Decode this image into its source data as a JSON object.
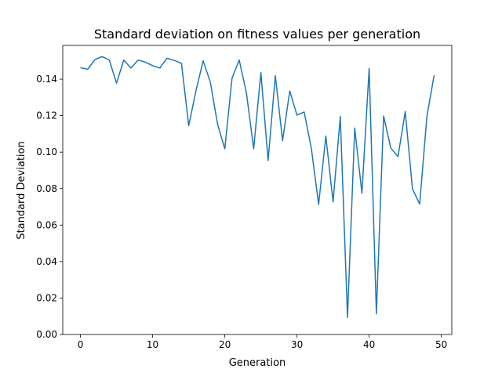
{
  "chart_data": {
    "type": "line",
    "title": "Standard deviation on fitness values per generation",
    "xlabel": "Generation",
    "ylabel": "Standard Deviation",
    "xlim": [
      -2.45,
      51.45
    ],
    "ylim": [
      0.0,
      0.1585
    ],
    "xticks": [
      0,
      10,
      20,
      30,
      40,
      50
    ],
    "xtick_labels": [
      "0",
      "10",
      "20",
      "30",
      "40",
      "50"
    ],
    "yticks": [
      0.0,
      0.02,
      0.04,
      0.06,
      0.08,
      0.1,
      0.12,
      0.14
    ],
    "ytick_labels": [
      "0.00",
      "0.02",
      "0.04",
      "0.06",
      "0.08",
      "0.10",
      "0.12",
      "0.14"
    ],
    "grid": false,
    "series": [
      {
        "color": "#1f77b4",
        "x": [
          0,
          1,
          2,
          3,
          4,
          5,
          6,
          7,
          8,
          9,
          10,
          11,
          12,
          13,
          14,
          15,
          16,
          17,
          18,
          19,
          20,
          21,
          22,
          23,
          24,
          25,
          26,
          27,
          28,
          29,
          30,
          31,
          32,
          33,
          34,
          35,
          36,
          37,
          38,
          39,
          40,
          41,
          42,
          43,
          44,
          45,
          46,
          47,
          48,
          49
        ],
        "y": [
          0.1463,
          0.1454,
          0.1507,
          0.1524,
          0.1505,
          0.1378,
          0.1505,
          0.1461,
          0.1505,
          0.1493,
          0.1474,
          0.1461,
          0.1515,
          0.1503,
          0.1487,
          0.1145,
          0.1335,
          0.1501,
          0.1383,
          0.1153,
          0.1018,
          0.1405,
          0.1505,
          0.1324,
          0.1018,
          0.1436,
          0.0954,
          0.142,
          0.1063,
          0.1335,
          0.1203,
          0.122,
          0.1018,
          0.0713,
          0.1088,
          0.0727,
          0.1195,
          0.0093,
          0.1132,
          0.0774,
          0.1459,
          0.0113,
          0.1198,
          0.1022,
          0.0976,
          0.1223,
          0.0798,
          0.0715,
          0.1195,
          0.1421
        ]
      }
    ]
  }
}
